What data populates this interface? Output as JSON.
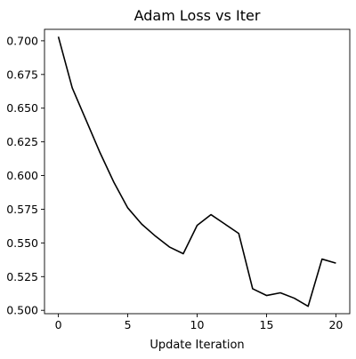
{
  "chart_data": {
    "type": "line",
    "title": "Adam Loss vs Iter",
    "xlabel": "Update Iteration",
    "ylabel": "",
    "xlim": [
      -1,
      21
    ],
    "ylim": [
      0.4975,
      0.7085
    ],
    "x_ticks": [
      0,
      5,
      10,
      15,
      20
    ],
    "x_tick_labels": [
      "0",
      "5",
      "10",
      "15",
      "20"
    ],
    "y_ticks": [
      0.5,
      0.525,
      0.55,
      0.575,
      0.6,
      0.625,
      0.65,
      0.675,
      0.7
    ],
    "y_tick_labels": [
      "0.500",
      "0.525",
      "0.550",
      "0.575",
      "0.600",
      "0.625",
      "0.650",
      "0.675",
      "0.700"
    ],
    "grid": false,
    "legend": "none",
    "series": [
      {
        "color": "#000000",
        "x": [
          0,
          1,
          2,
          3,
          4,
          5,
          6,
          7,
          8,
          9,
          10,
          11,
          12,
          13,
          14,
          15,
          16,
          17,
          18,
          19,
          20
        ],
        "y": [
          0.703,
          0.665,
          0.641,
          0.617,
          0.595,
          0.576,
          0.564,
          0.555,
          0.547,
          0.542,
          0.563,
          0.571,
          0.564,
          0.557,
          0.516,
          0.511,
          0.513,
          0.509,
          0.503,
          0.538,
          0.535
        ]
      }
    ]
  }
}
